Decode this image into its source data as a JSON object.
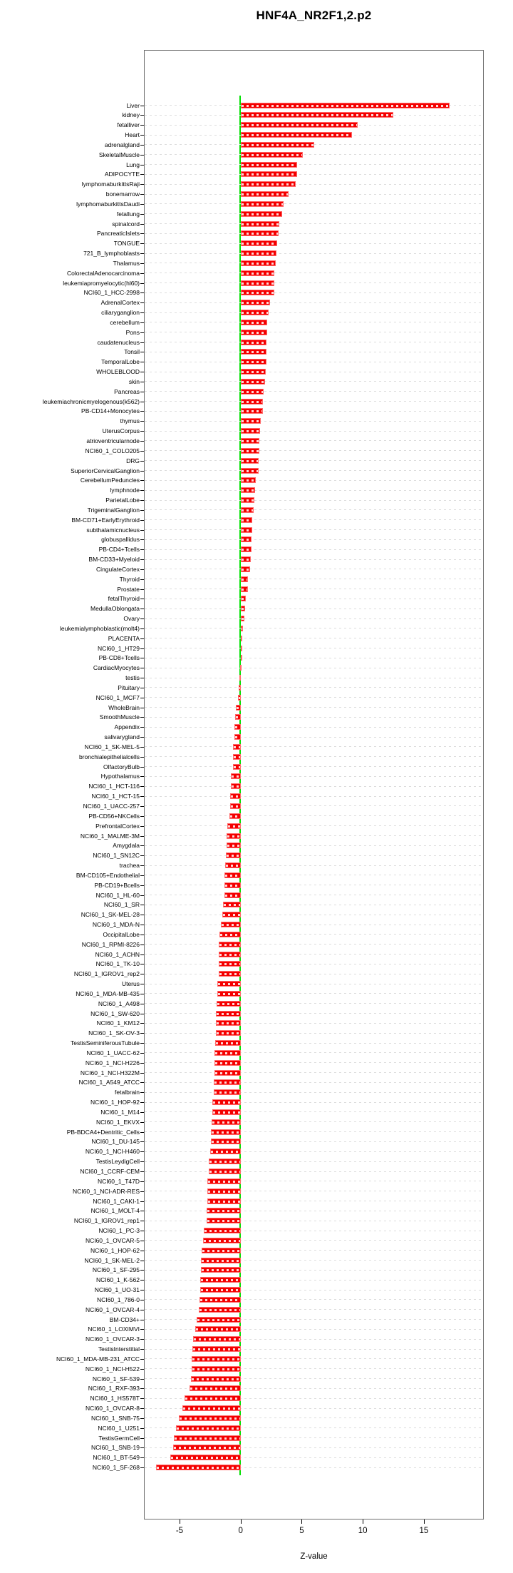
{
  "title": "HNF4A_NR2F1,2.p2",
  "chart_data": {
    "type": "bar",
    "orientation": "horizontal",
    "title": "HNF4A_NR2F1,2.p2",
    "xlabel": "Z-value",
    "x_ticks": [
      -5,
      0,
      5,
      10,
      15
    ],
    "xlim": [
      -7.9,
      19.9
    ],
    "grid": "dashed-horizontal",
    "legend": "none",
    "bar_color": "#f40000",
    "bar_edge_color": "#ff6a6a",
    "zero_line_color": "#00e100",
    "grid_color": "#dcdcdc",
    "categories": [
      "Liver",
      "kidney",
      "fetalliver",
      "Heart",
      "adrenalgland",
      "SkeletalMuscle",
      "Lung",
      "ADIPOCYTE",
      "lymphomaburkittsRaji",
      "bonemarrow",
      "lymphomaburkittsDaudi",
      "fetallung",
      "spinalcord",
      "PancreaticIslets",
      "TONGUE",
      "721_B_lymphoblasts",
      "Thalamus",
      "ColorectalAdenocarcinoma",
      "leukemiapromyelocytic(hl60)",
      "NCI60_1_HCC-2998",
      "AdrenalCortex",
      "ciliaryganglion",
      "cerebellum",
      "Pons",
      "caudatenucleus",
      "Tonsil",
      "TemporalLobe",
      "WHOLEBLOOD",
      "skin",
      "Pancreas",
      "leukemiachronicmyelogenous(k562)",
      "PB-CD14+Monocytes",
      "thymus",
      "UterusCorpus",
      "atrioventricularnode",
      "NCI60_1_COLO205",
      "DRG",
      "SuperiorCervicalGanglion",
      "CerebellumPeduncles",
      "lymphnode",
      "ParietalLobe",
      "TrigeminalGanglion",
      "BM-CD71+EarlyErythroid",
      "subthalamicnucleus",
      "globuspallidus",
      "PB-CD4+Tcells",
      "BM-CD33+Myeloid",
      "CingulateCortex",
      "Thyroid",
      "Prostate",
      "fetalThyroid",
      "MedullaOblongata",
      "Ovary",
      "leukemialymphoblastic(molt4)",
      "PLACENTA",
      "NCI60_1_HT29",
      "PB-CD8+Tcells",
      "CardiacMyocytes",
      "testis",
      "Pituitary",
      "NCI60_1_MCF7",
      "WholeBrain",
      "SmoothMuscle",
      "Appendix",
      "salivarygland",
      "NCI60_1_SK-MEL-5",
      "bronchialepithelialcells",
      "OlfactoryBulb",
      "Hypothalamus",
      "NCI60_1_HCT-116",
      "NCI60_1_HCT-15",
      "NCI60_1_UACC-257",
      "PB-CD56+NKCells",
      "PrefrontalCortex",
      "NCI60_1_MALME-3M",
      "Amygdala",
      "NCI60_1_SN12C",
      "trachea",
      "BM-CD105+Endothelial",
      "PB-CD19+Bcells",
      "NCI60_1_HL-60",
      "NCI60_1_SR",
      "NCI60_1_SK-MEL-28",
      "NCI60_1_MDA-N",
      "OccipitalLobe",
      "NCI60_1_RPMI-8226",
      "NCI60_1_ACHN",
      "NCI60_1_TK-10",
      "NCI60_1_IGROV1_rep2",
      "Uterus",
      "NCI60_1_MDA-MB-435",
      "NCI60_1_A498",
      "NCI60_1_SW-620",
      "NCI60_1_KM12",
      "NCI60_1_SK-OV-3",
      "TestisSeminiferousTubule",
      "NCI60_1_UACC-62",
      "NCI60_1_NCI-H226",
      "NCI60_1_NCI-H322M",
      "NCI60_1_A549_ATCC",
      "fetalbrain",
      "NCI60_1_HOP-92",
      "NCI60_1_M14",
      "NCI60_1_EKVX",
      "PB-BDCA4+Dentritic_Cells",
      "NCI60_1_DU-145",
      "NCI60_1_NCI-H460",
      "TestisLeydigCell",
      "NCI60_1_CCRF-CEM",
      "NCI60_1_T47D",
      "NCI60_1_NCI-ADR-RES",
      "NCI60_1_CAKI-1",
      "NCI60_1_MOLT-4",
      "NCI60_1_IGROV1_rep1",
      "NCI60_1_PC-3",
      "NCI60_1_OVCAR-5",
      "NCI60_1_HOP-62",
      "NCI60_1_SK-MEL-2",
      "NCI60_1_SF-295",
      "NCI60_1_K-562",
      "NCI60_1_UO-31",
      "NCI60_1_786-0",
      "NCI60_1_OVCAR-4",
      "BM-CD34+",
      "NCI60_1_LOXIMVI",
      "NCI60_1_OVCAR-3",
      "TestisInterstitial",
      "NCI60_1_MDA-MB-231_ATCC",
      "NCI60_1_NCI-H522",
      "NCI60_1_SF-539",
      "NCI60_1_RXF-393",
      "NCI60_1_HS578T",
      "NCI60_1_OVCAR-8",
      "NCI60_1_SNB-75",
      "NCI60_1_U251",
      "TestisGermCell",
      "NCI60_1_SNB-19",
      "NCI60_1_BT-549",
      "NCI60_1_SF-268"
    ],
    "values": [
      17.1,
      12.5,
      9.6,
      9.1,
      6.0,
      5.1,
      4.6,
      4.6,
      4.5,
      3.9,
      3.5,
      3.4,
      3.15,
      3.1,
      3.0,
      2.95,
      2.85,
      2.75,
      2.75,
      2.75,
      2.4,
      2.3,
      2.2,
      2.2,
      2.1,
      2.1,
      2.1,
      2.05,
      2.0,
      1.9,
      1.85,
      1.8,
      1.65,
      1.6,
      1.55,
      1.55,
      1.5,
      1.45,
      1.25,
      1.2,
      1.15,
      1.05,
      0.95,
      0.93,
      0.9,
      0.9,
      0.85,
      0.8,
      0.6,
      0.6,
      0.45,
      0.35,
      0.3,
      0.17,
      0.15,
      0.1,
      0.06,
      -0.05,
      -0.08,
      -0.17,
      -0.2,
      -0.4,
      -0.45,
      -0.5,
      -0.52,
      -0.6,
      -0.6,
      -0.62,
      -0.8,
      -0.8,
      -0.85,
      -0.85,
      -0.9,
      -1.1,
      -1.15,
      -1.17,
      -1.2,
      -1.25,
      -1.3,
      -1.32,
      -1.32,
      -1.45,
      -1.5,
      -1.63,
      -1.72,
      -1.77,
      -1.8,
      -1.81,
      -1.81,
      -1.88,
      -1.88,
      -1.94,
      -2.0,
      -2.0,
      -2.03,
      -2.08,
      -2.12,
      -2.14,
      -2.14,
      -2.17,
      -2.17,
      -2.3,
      -2.3,
      -2.35,
      -2.43,
      -2.45,
      -2.5,
      -2.6,
      -2.6,
      -2.7,
      -2.75,
      -2.75,
      -2.8,
      -2.8,
      -3.0,
      -3.1,
      -3.2,
      -3.23,
      -3.25,
      -3.28,
      -3.32,
      -3.35,
      -3.4,
      -3.6,
      -3.7,
      -3.9,
      -3.92,
      -4.0,
      -4.03,
      -4.05,
      -4.2,
      -4.6,
      -4.75,
      -5.05,
      -5.3,
      -5.45,
      -5.5,
      -5.75,
      -6.95
    ]
  }
}
